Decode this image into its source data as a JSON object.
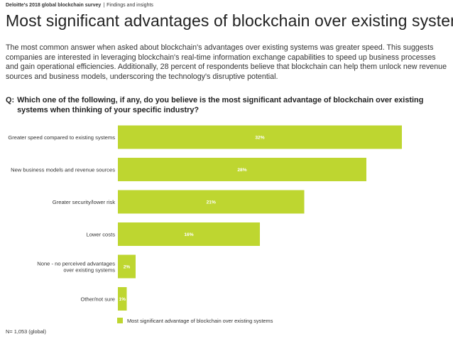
{
  "header": {
    "report": "Deloitte's 2018 global blockchain survey",
    "separator": "|",
    "section": "Findings and insights"
  },
  "title": "Most significant advantages of blockchain over existing systems",
  "intro": "The most common answer when asked about blockchain's advantages over existing systems was greater speed. This suggests companies are interested in leveraging blockchain's real-time information exchange capabilities to speed up business processes and gain operational efficiencies. Additionally, 28 percent of respondents believe that blockchain can help them unlock new revenue sources and business models, underscoring the technology's disruptive potential.",
  "question": {
    "prefix": "Q:",
    "text": "Which one of the following, if any, do you believe is the most significant advantage of blockchain over existing systems when thinking of your specific industry?"
  },
  "chart_data": {
    "type": "bar",
    "orientation": "horizontal",
    "categories": [
      [
        "Greater speed compared to existing systems"
      ],
      [
        "New business models and revenue sources"
      ],
      [
        "Greater security/lower risk"
      ],
      [
        "Lower costs"
      ],
      [
        "None - no perceived advantages",
        "over existing systems"
      ],
      [
        "Other/not sure"
      ]
    ],
    "values": [
      32,
      28,
      21,
      16,
      2,
      1
    ],
    "value_labels": [
      "32%",
      "28%",
      "21%",
      "16%",
      "2%",
      "1%"
    ],
    "series_name": "Most significant advantage of blockchain over existing systems",
    "color": "#BED630",
    "legend_position": "bottom",
    "grid": false
  },
  "footnote": "N= 1,053 (global)"
}
